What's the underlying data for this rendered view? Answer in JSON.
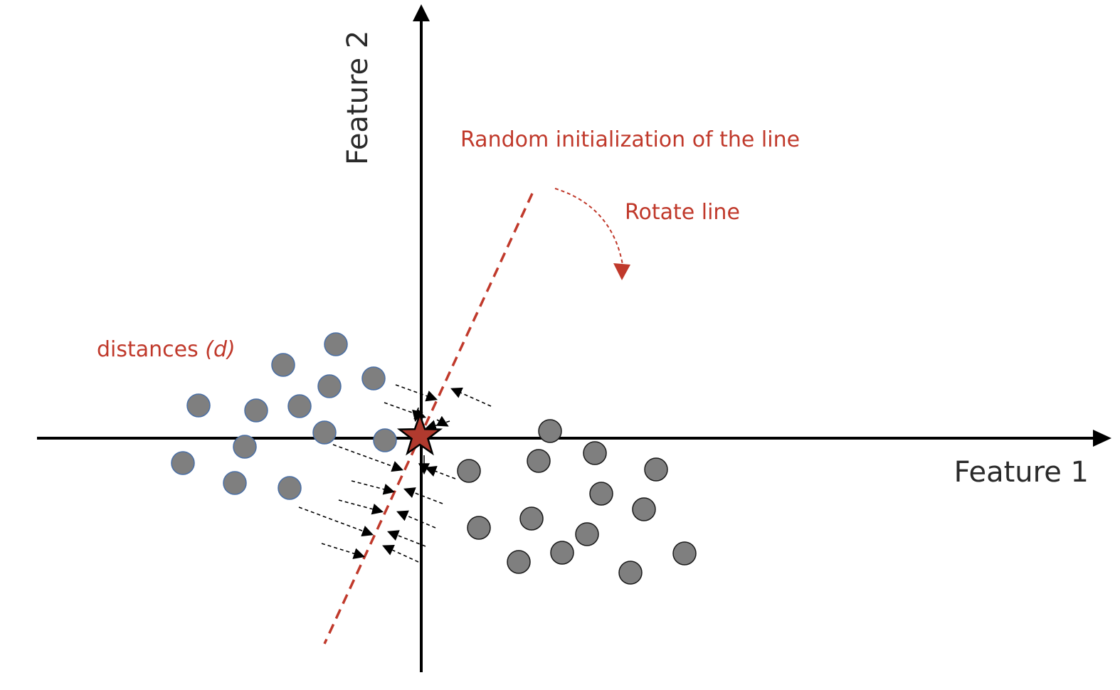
{
  "labels": {
    "feature_1": "Feature 1",
    "feature_2": "Feature 2",
    "random_init": "Random initialization of the line",
    "rotate_line": "Rotate line",
    "distances_prefix": "distances ",
    "distances_symbol": "(d)"
  },
  "colors": {
    "axis": "#000000",
    "point_fill": "#7f7f7f",
    "cluster_left_stroke": "#4a6fa5",
    "cluster_right_stroke": "#1a1a1a",
    "accent": "#c0392b",
    "star_fill": "#b03a2e"
  },
  "icons": {
    "origin_marker": "star-icon",
    "rotation_hint": "curved-arrow-icon"
  }
}
